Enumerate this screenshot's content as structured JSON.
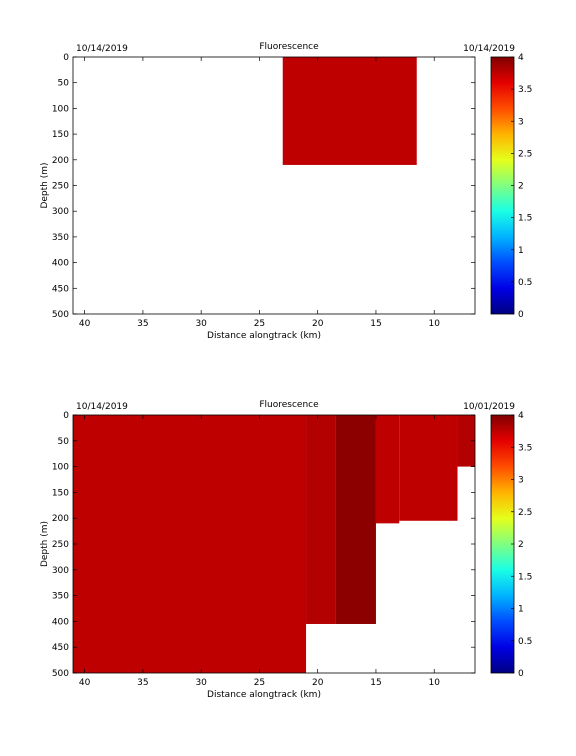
{
  "chart_data": [
    {
      "type": "heatmap",
      "title": "Fluorescence",
      "left_date": "10/14/2019",
      "right_date": "10/14/2019",
      "xlabel": "Distance alongtrack (km)",
      "ylabel": "Depth (m)",
      "xlim": [
        41,
        6.5
      ],
      "ylim": [
        0,
        500
      ],
      "xticks": [
        40,
        35,
        30,
        25,
        20,
        15,
        10
      ],
      "yticks": [
        0,
        50,
        100,
        150,
        200,
        250,
        300,
        350,
        400,
        450,
        500
      ],
      "colorbar": {
        "range": [
          0,
          4
        ],
        "ticks": [
          0,
          0.5,
          1,
          1.5,
          2,
          2.5,
          3,
          3.5,
          4
        ]
      },
      "sections": [
        {
          "x_start": 23,
          "x_end": 11.5,
          "max_depth": 210,
          "value": 3.75
        }
      ]
    },
    {
      "type": "heatmap",
      "title": "Fluorescence",
      "left_date": "10/14/2019",
      "right_date": "10/01/2019",
      "xlabel": "Distance alongtrack (km)",
      "ylabel": "Depth (m)",
      "xlim": [
        41,
        6.5
      ],
      "ylim": [
        0,
        500
      ],
      "xticks": [
        40,
        35,
        30,
        25,
        20,
        15,
        10
      ],
      "yticks": [
        0,
        50,
        100,
        150,
        200,
        250,
        300,
        350,
        400,
        450,
        500
      ],
      "colorbar": {
        "range": [
          0,
          4
        ],
        "ticks": [
          0,
          0.5,
          1,
          1.5,
          2,
          2.5,
          3,
          3.5,
          4
        ]
      },
      "sections": [
        {
          "x_start": 41,
          "x_end": 21,
          "max_depth": 500,
          "value": 3.75
        },
        {
          "x_start": 21,
          "x_end": 18.5,
          "max_depth": 405,
          "value": 3.8
        },
        {
          "x_start": 18.5,
          "x_end": 15,
          "max_depth": 405,
          "value": 3.95
        },
        {
          "x_start": 15,
          "x_end": 13,
          "max_depth": 210,
          "value": 3.75
        },
        {
          "x_start": 13,
          "x_end": 8,
          "max_depth": 205,
          "value": 3.75
        },
        {
          "x_start": 8,
          "x_end": 6.5,
          "max_depth": 100,
          "value": 3.8
        }
      ]
    }
  ]
}
